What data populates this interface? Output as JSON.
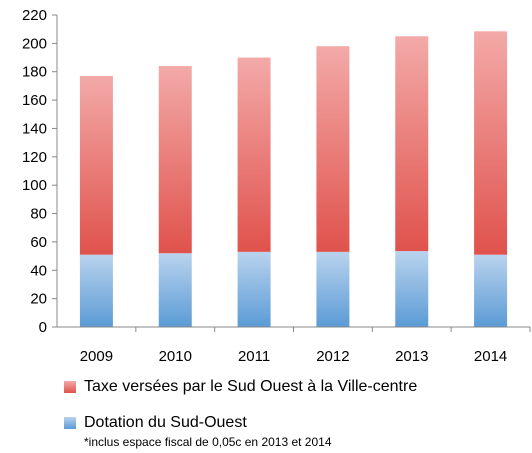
{
  "chart_data": {
    "type": "bar",
    "stacked": true,
    "categories": [
      "2009",
      "2010",
      "2011",
      "2012",
      "2013",
      "2014"
    ],
    "series": [
      {
        "name": "Dotation du Sud-Ouest",
        "values": [
          51,
          52,
          53,
          53,
          53.5,
          51
        ],
        "color": "#5b9bd5"
      },
      {
        "name": "Taxe versées par le Sud Ouest à la Ville-centre",
        "values": [
          126,
          132,
          137,
          145,
          151.5,
          157.5
        ],
        "color": "#e0524c"
      }
    ],
    "ylim": [
      0,
      220
    ],
    "yticks": [
      0,
      20,
      40,
      60,
      80,
      100,
      120,
      140,
      160,
      180,
      200,
      220
    ],
    "title": "",
    "xlabel": "",
    "ylabel": "",
    "grid": false,
    "legend_position": "bottom",
    "note": "*inclus espace fiscal de 0,05c en 2013 et 2014"
  }
}
